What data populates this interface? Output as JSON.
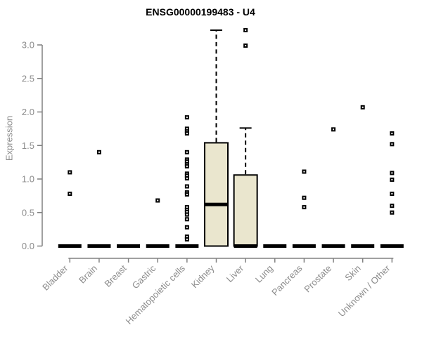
{
  "chart_data": {
    "type": "boxplot",
    "title": "ENSG00000199483 - U4",
    "ylabel": "Expression",
    "xlabel": "",
    "ylim": [
      0,
      3.3
    ],
    "ytick_values": [
      0,
      0.5,
      1,
      1.5,
      2,
      2.5,
      3
    ],
    "ytick_labels": [
      "0.0",
      "0.5",
      "1.0",
      "1.5",
      "2.0",
      "2.5",
      "3.0"
    ],
    "categories": [
      "Bladder",
      "Brain",
      "Breast",
      "Gastric",
      "Hematopoietic cells",
      "Kidney",
      "Liver",
      "Lung",
      "Pancreas",
      "Prostate",
      "Skin",
      "Unknown / Other"
    ],
    "legend": "none",
    "grid": false,
    "boxes": [
      {
        "category": "Bladder",
        "q1": 0,
        "median": 0,
        "q3": 0,
        "whisker_low": 0,
        "whisker_high": 0,
        "outliers": [
          1.1,
          0.78
        ]
      },
      {
        "category": "Brain",
        "q1": 0,
        "median": 0,
        "q3": 0,
        "whisker_low": 0,
        "whisker_high": 0,
        "outliers": [
          1.4
        ]
      },
      {
        "category": "Breast",
        "q1": 0,
        "median": 0,
        "q3": 0,
        "whisker_low": 0,
        "whisker_high": 0,
        "outliers": []
      },
      {
        "category": "Gastric",
        "q1": 0,
        "median": 0,
        "q3": 0,
        "whisker_low": 0,
        "whisker_high": 0,
        "outliers": [
          0.68
        ]
      },
      {
        "category": "Hematopoietic cells",
        "q1": 0,
        "median": 0,
        "q3": 0,
        "whisker_low": 0,
        "whisker_high": 0,
        "outliers": [
          1.92,
          1.75,
          1.71,
          1.68,
          1.4,
          1.29,
          1.26,
          1.22,
          1.19,
          1.08,
          1.05,
          1.01,
          0.89,
          0.8,
          0.77,
          0.58,
          0.54,
          0.51,
          0.47,
          0.4,
          0.28,
          0.14,
          0.1
        ]
      },
      {
        "category": "Kidney",
        "q1": 0,
        "median": 0.62,
        "q3": 1.54,
        "whisker_low": 0,
        "whisker_high": 3.22,
        "outliers": []
      },
      {
        "category": "Liver",
        "q1": 0,
        "median": 0,
        "q3": 1.06,
        "whisker_low": 0,
        "whisker_high": 1.76,
        "outliers": [
          3.22,
          2.99
        ]
      },
      {
        "category": "Lung",
        "q1": 0,
        "median": 0,
        "q3": 0,
        "whisker_low": 0,
        "whisker_high": 0,
        "outliers": []
      },
      {
        "category": "Pancreas",
        "q1": 0,
        "median": 0,
        "q3": 0,
        "whisker_low": 0,
        "whisker_high": 0,
        "outliers": [
          1.11,
          0.72,
          0.58
        ]
      },
      {
        "category": "Prostate",
        "q1": 0,
        "median": 0,
        "q3": 0,
        "whisker_low": 0,
        "whisker_high": 0,
        "outliers": [
          1.74
        ]
      },
      {
        "category": "Skin",
        "q1": 0,
        "median": 0,
        "q3": 0,
        "whisker_low": 0,
        "whisker_high": 0,
        "outliers": [
          2.07
        ]
      },
      {
        "category": "Unknown / Other",
        "q1": 0,
        "median": 0,
        "q3": 0,
        "whisker_low": 0,
        "whisker_high": 0,
        "outliers": [
          1.68,
          1.52,
          1.09,
          0.99,
          0.78,
          0.6,
          0.5
        ]
      }
    ],
    "colors": {
      "box_fill": "#eae6ce",
      "box_border": "#000000",
      "median": "#000000",
      "whisker": "#000000",
      "outlier": "#000000",
      "axis": "#808080",
      "tick_label": "#8c8c8c",
      "title": "#000000",
      "background": "#ffffff"
    }
  }
}
